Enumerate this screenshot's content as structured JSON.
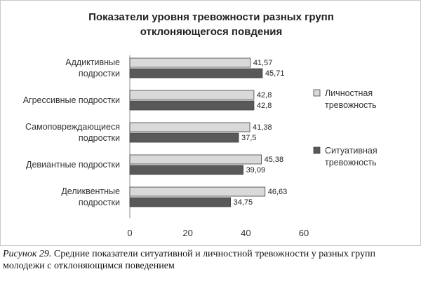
{
  "chart_data": {
    "type": "bar",
    "orientation": "horizontal",
    "title_lines": [
      "Показатели уровня тревожности разных групп",
      "отклоняющегося повдения"
    ],
    "categories": [
      [
        "Аддиктивные",
        "подростки"
      ],
      [
        "Агрессивные подростки"
      ],
      [
        "Самоповреждающиеся",
        "подростки"
      ],
      [
        "Девиантные подростки"
      ],
      [
        "Деликвентные",
        "подростки"
      ]
    ],
    "series": [
      {
        "name_lines": [
          "Личностная",
          "тревожность"
        ],
        "values": [
          41.57,
          42.8,
          41.38,
          45.38,
          46.63
        ],
        "labels": [
          "41,57",
          "42,8",
          "41,38",
          "45,38",
          "46,63"
        ],
        "color": "#d9d9d9"
      },
      {
        "name_lines": [
          "Ситуативная",
          "тревожность"
        ],
        "values": [
          45.71,
          42.8,
          37.5,
          39.09,
          34.75
        ],
        "labels": [
          "45,71",
          "42,8",
          "37,5",
          "39,09",
          "34,75"
        ],
        "color": "#595959"
      }
    ],
    "xlim": [
      0,
      60
    ],
    "xticks": [
      0,
      20,
      40,
      60
    ],
    "grid": false,
    "legend_position": "right"
  },
  "caption": {
    "figure_label": "Рисунок 29.",
    "text": " Средние показатели ситуативной и личностной тревожности у разных групп молодежи с отклоняющимся поведением"
  }
}
